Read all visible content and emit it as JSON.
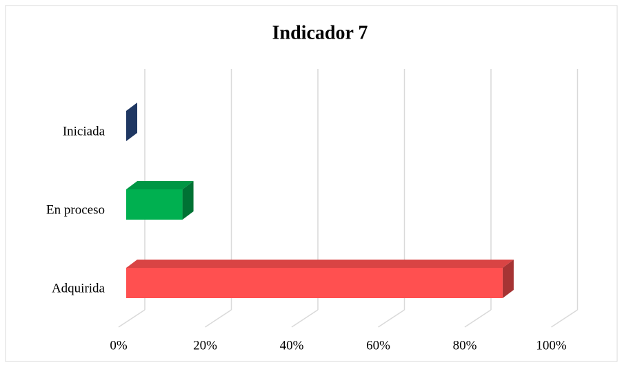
{
  "chart_data": {
    "type": "bar3d_horizontal",
    "title": "Indicador 7",
    "categories": [
      "Iniciada",
      "En proceso",
      "Adquirida"
    ],
    "values": [
      0,
      13,
      87
    ],
    "colors": [
      "#2f5597",
      "#00b050",
      "#ff5050"
    ],
    "xlim": [
      0,
      100
    ],
    "xticks": [
      {
        "value": 0,
        "label": "0%"
      },
      {
        "value": 20,
        "label": "20%"
      },
      {
        "value": 40,
        "label": "40%"
      },
      {
        "value": 60,
        "label": "60%"
      },
      {
        "value": 80,
        "label": "80%"
      },
      {
        "value": 100,
        "label": "100%"
      }
    ],
    "grid": true
  }
}
